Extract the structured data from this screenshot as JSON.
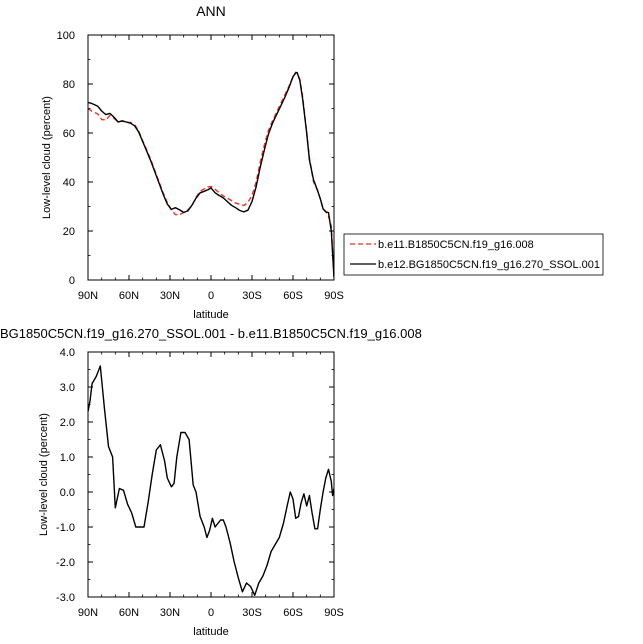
{
  "chart_data": [
    {
      "type": "line",
      "title": "ANN",
      "xlabel": "latitude",
      "ylabel": "Low-level cloud (percent)",
      "xlim": [
        90,
        -90
      ],
      "ylim": [
        0,
        100
      ],
      "xticks": [
        90,
        60,
        30,
        0,
        -30,
        -60,
        -90
      ],
      "xtick_labels": [
        "90N",
        "60N",
        "30N",
        "0",
        "30S",
        "60S",
        "90S"
      ],
      "yticks": [
        0,
        20,
        40,
        60,
        80,
        100
      ],
      "ytick_labels": [
        "0",
        "20",
        "40",
        "60",
        "80",
        "100"
      ],
      "grid": false,
      "legend_position": "right of plot, lower",
      "series": [
        {
          "name": "b.e11.B1850C5CN.f19_g16.008",
          "color": "#e8322a",
          "dash": "dashed",
          "x": [
            90,
            87,
            83,
            80,
            77,
            74,
            71,
            68,
            65,
            62,
            59,
            56,
            53,
            50,
            47,
            44,
            41,
            38,
            35,
            32,
            29,
            26,
            23,
            20,
            17,
            14,
            11,
            8,
            5,
            2,
            0,
            -3,
            -6,
            -9,
            -12,
            -15,
            -18,
            -21,
            -24,
            -27,
            -30,
            -33,
            -36,
            -39,
            -42,
            -45,
            -48,
            -51,
            -54,
            -57,
            -60,
            -62,
            -63,
            -65,
            -67,
            -70,
            -72,
            -75,
            -78,
            -80,
            -82,
            -84,
            -86,
            -88,
            -90
          ],
          "y": [
            70,
            68.8,
            67.8,
            65.5,
            65.3,
            67.2,
            66,
            64.6,
            64.8,
            64.4,
            64.3,
            63.5,
            60.8,
            56.8,
            53,
            49,
            44.5,
            40,
            35.5,
            31.6,
            28.5,
            26.7,
            26.6,
            27.6,
            28.6,
            30.3,
            33.7,
            36.2,
            37.2,
            38,
            38.2,
            37,
            35.6,
            34.3,
            33.4,
            32.4,
            31.4,
            30.9,
            30.4,
            31.7,
            34.5,
            40,
            48,
            55,
            61,
            65,
            68.5,
            72,
            75.5,
            79,
            83,
            84.8,
            84.5,
            82,
            75,
            60,
            50,
            40,
            36.5,
            33,
            29,
            28,
            26,
            22,
            0.5
          ]
        },
        {
          "name": "b.e12.BG1850C5CN.f19_g16.270_SSOL.001",
          "color": "#000000",
          "dash": "solid",
          "x": [
            90,
            87,
            83,
            80,
            77,
            74,
            71,
            68,
            65,
            62,
            59,
            56,
            53,
            50,
            47,
            44,
            41,
            38,
            35,
            32,
            29,
            26,
            23,
            20,
            17,
            14,
            11,
            8,
            5,
            2,
            0,
            -3,
            -6,
            -9,
            -12,
            -15,
            -18,
            -21,
            -24,
            -27,
            -30,
            -33,
            -36,
            -39,
            -42,
            -45,
            -48,
            -51,
            -54,
            -57,
            -60,
            -62,
            -63,
            -65,
            -67,
            -70,
            -72,
            -75,
            -78,
            -80,
            -82,
            -84,
            -86,
            -88,
            -90
          ],
          "y": [
            72.5,
            72,
            71,
            69,
            67.5,
            68,
            66.5,
            64.5,
            65,
            64.5,
            64,
            63,
            60.5,
            56.5,
            52.5,
            48.5,
            44,
            39.5,
            35,
            31,
            28.8,
            29.5,
            28.6,
            27.6,
            28.2,
            30.5,
            33.4,
            35.6,
            36.2,
            36.9,
            37.6,
            35.6,
            34.5,
            33.5,
            32,
            30.5,
            29.5,
            28.4,
            27.8,
            28.5,
            32,
            38,
            46,
            53,
            59.5,
            64,
            67.5,
            71,
            74.5,
            78.5,
            83,
            84.5,
            84.7,
            81.5,
            74,
            60,
            49,
            41,
            36.5,
            33.2,
            29,
            27.8,
            27.5,
            20,
            1
          ]
        }
      ]
    },
    {
      "type": "line",
      "title": "BG1850C5CN.f19_g16.270_SSOL.001 - b.e11.B1850C5CN.f19_g16.008",
      "xlabel": "latitude",
      "ylabel": "Low-level cloud (percent)",
      "xlim": [
        90,
        -90
      ],
      "ylim": [
        -3,
        4
      ],
      "xticks": [
        90,
        60,
        30,
        0,
        -30,
        -60,
        -90
      ],
      "xtick_labels": [
        "90N",
        "60N",
        "30N",
        "0",
        "30S",
        "60S",
        "90S"
      ],
      "yticks": [
        -3,
        -2,
        -1,
        0,
        1,
        2,
        3,
        4
      ],
      "ytick_labels": [
        "-3.0",
        "-2.0",
        "-1.0",
        "0.0",
        "1.0",
        "2.0",
        "3.0",
        "4.0"
      ],
      "grid": false,
      "series": [
        {
          "color": "#000000",
          "dash": "solid",
          "x": [
            90,
            88.5,
            87,
            84,
            81,
            78,
            75,
            72,
            70,
            67,
            64,
            61,
            58,
            55,
            52,
            49,
            46,
            43,
            40,
            37,
            34,
            32,
            29,
            27,
            25,
            22,
            19,
            16,
            13,
            11,
            8,
            5,
            3,
            1,
            -1,
            -3,
            -5,
            -7,
            -9,
            -11,
            -14,
            -17,
            -20,
            -23,
            -26,
            -29,
            -32,
            -35,
            -38,
            -41,
            -44,
            -47,
            -50,
            -53,
            -56,
            -58,
            -60,
            -62,
            -64,
            -66,
            -68,
            -70,
            -72,
            -74,
            -76,
            -78,
            -80,
            -82,
            -84,
            -86,
            -88,
            -89,
            -90
          ],
          "y": [
            2.3,
            2.6,
            3.1,
            3.3,
            3.6,
            2.4,
            1.3,
            1.0,
            -0.45,
            0.1,
            0.05,
            -0.35,
            -0.6,
            -1.0,
            -1.0,
            -1.0,
            -0.3,
            0.5,
            1.2,
            1.35,
            0.9,
            0.4,
            0.15,
            0.25,
            1.0,
            1.7,
            1.7,
            1.5,
            0.2,
            0.0,
            -0.7,
            -1.0,
            -1.3,
            -1.1,
            -0.75,
            -1.0,
            -0.9,
            -0.8,
            -0.8,
            -1.0,
            -1.45,
            -2.0,
            -2.45,
            -2.85,
            -2.6,
            -2.7,
            -2.95,
            -2.6,
            -2.4,
            -2.1,
            -1.7,
            -1.5,
            -1.3,
            -0.9,
            -0.35,
            0.0,
            -0.2,
            -0.75,
            -0.7,
            -0.3,
            -0.05,
            -0.4,
            -0.1,
            -0.6,
            -1.05,
            -1.05,
            -0.5,
            0.0,
            0.4,
            0.65,
            0.3,
            -0.1,
            0.1
          ]
        }
      ]
    }
  ]
}
